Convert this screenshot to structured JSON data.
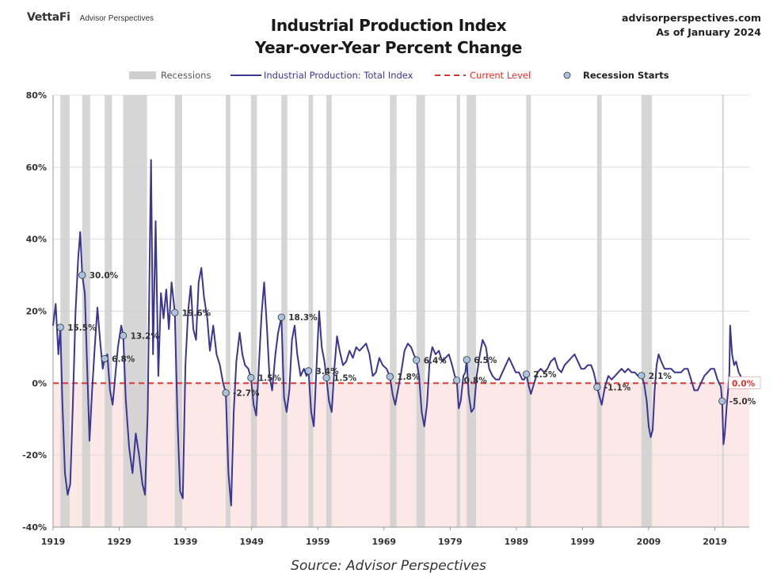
{
  "header": {
    "brand_primary": "VettaFi",
    "brand_secondary": "Advisor Perspectives",
    "title_line1": "Industrial Production Index",
    "title_line2": "Year-over-Year Percent Change",
    "site": "advisorperspectives.com",
    "as_of": "As of January 2024"
  },
  "source": "Source: Advisor Perspectives",
  "colors": {
    "series": "#3b3594",
    "recession": "#cfcfcf",
    "current_level": "#e8302a",
    "negative_fill": "#fde8e8",
    "marker_fill": "#a9c3e0",
    "gridline": "#dcdcdc"
  },
  "chart_data": {
    "type": "line",
    "title": "Industrial Production Index Year-over-Year Percent Change",
    "xlabel": "",
    "ylabel": "",
    "xlim": [
      1919,
      2024.2
    ],
    "ylim": [
      -40,
      80
    ],
    "x_ticks": [
      1919,
      1929,
      1939,
      1949,
      1959,
      1969,
      1979,
      1989,
      1999,
      2009,
      2019
    ],
    "y_ticks": [
      -40,
      -20,
      0,
      20,
      40,
      60,
      80
    ],
    "y_tick_labels": [
      "-40%",
      "-20%",
      "0%",
      "20%",
      "40%",
      "60%",
      "80%"
    ],
    "grid": "horizontal",
    "legend_position": "top",
    "legend": [
      {
        "key": "recessions",
        "label": "Recessions"
      },
      {
        "key": "series",
        "label": "Industrial Production: Total Index"
      },
      {
        "key": "current",
        "label": "Current Level"
      },
      {
        "key": "starts",
        "label": "Recession Starts"
      }
    ],
    "current_level": 0.0,
    "current_level_label": "0.0%",
    "recessions": [
      [
        1920.1,
        1921.5
      ],
      [
        1923.4,
        1924.6
      ],
      [
        1926.8,
        1927.9
      ],
      [
        1929.6,
        1933.2
      ],
      [
        1937.4,
        1938.5
      ],
      [
        1945.1,
        1945.8
      ],
      [
        1948.9,
        1949.8
      ],
      [
        1953.5,
        1954.4
      ],
      [
        1957.6,
        1958.3
      ],
      [
        1960.3,
        1961.1
      ],
      [
        1969.9,
        1970.9
      ],
      [
        1973.9,
        1975.2
      ],
      [
        1980.0,
        1980.5
      ],
      [
        1981.5,
        1982.9
      ],
      [
        1990.5,
        1991.2
      ],
      [
        2001.2,
        2001.9
      ],
      [
        2007.9,
        2009.5
      ],
      [
        2020.1,
        2020.3
      ]
    ],
    "recession_starts": [
      {
        "x": 1920.1,
        "y": 15.5,
        "label": "15.5%"
      },
      {
        "x": 1923.4,
        "y": 30.0,
        "label": "30.0%"
      },
      {
        "x": 1926.8,
        "y": 6.8,
        "label": "6.8%"
      },
      {
        "x": 1929.6,
        "y": 13.2,
        "label": "13.2%"
      },
      {
        "x": 1937.4,
        "y": 19.6,
        "label": "19.6%"
      },
      {
        "x": 1945.1,
        "y": -2.7,
        "label": "-2.7%"
      },
      {
        "x": 1948.9,
        "y": 1.5,
        "label": "1.5%"
      },
      {
        "x": 1953.5,
        "y": 18.3,
        "label": "18.3%"
      },
      {
        "x": 1957.6,
        "y": 3.4,
        "label": "3.4%"
      },
      {
        "x": 1960.3,
        "y": 1.5,
        "label": "1.5%"
      },
      {
        "x": 1969.9,
        "y": 1.8,
        "label": "1.8%"
      },
      {
        "x": 1973.9,
        "y": 6.4,
        "label": "6.4%"
      },
      {
        "x": 1980.0,
        "y": 0.8,
        "label": "0.8%"
      },
      {
        "x": 1981.5,
        "y": 6.5,
        "label": "6.5%"
      },
      {
        "x": 1990.5,
        "y": 2.5,
        "label": "2.5%"
      },
      {
        "x": 2001.2,
        "y": -1.1,
        "label": "-1.1%"
      },
      {
        "x": 2007.9,
        "y": 2.1,
        "label": "2.1%"
      },
      {
        "x": 2020.1,
        "y": -5.0,
        "label": "-5.0%"
      }
    ],
    "series": [
      {
        "name": "Industrial Production: Total Index",
        "points": [
          [
            1919.0,
            16
          ],
          [
            1919.4,
            22
          ],
          [
            1919.8,
            8
          ],
          [
            1920.1,
            15.5
          ],
          [
            1920.4,
            -5
          ],
          [
            1920.8,
            -25
          ],
          [
            1921.2,
            -31
          ],
          [
            1921.6,
            -28
          ],
          [
            1922.0,
            -5
          ],
          [
            1922.4,
            20
          ],
          [
            1922.8,
            35
          ],
          [
            1923.1,
            42
          ],
          [
            1923.4,
            30
          ],
          [
            1923.8,
            25
          ],
          [
            1924.2,
            2
          ],
          [
            1924.5,
            -16
          ],
          [
            1924.9,
            -2
          ],
          [
            1925.3,
            10
          ],
          [
            1925.7,
            21
          ],
          [
            1926.1,
            12
          ],
          [
            1926.5,
            4
          ],
          [
            1926.8,
            6.8
          ],
          [
            1927.2,
            8
          ],
          [
            1927.6,
            -2
          ],
          [
            1928.0,
            -6
          ],
          [
            1928.4,
            2
          ],
          [
            1928.8,
            10
          ],
          [
            1929.3,
            16
          ],
          [
            1929.6,
            13.2
          ],
          [
            1930.0,
            -5
          ],
          [
            1930.5,
            -18
          ],
          [
            1931.0,
            -25
          ],
          [
            1931.5,
            -14
          ],
          [
            1932.0,
            -20
          ],
          [
            1932.5,
            -28
          ],
          [
            1932.9,
            -31
          ],
          [
            1933.3,
            -8
          ],
          [
            1933.6,
            35
          ],
          [
            1933.8,
            62
          ],
          [
            1934.1,
            8
          ],
          [
            1934.5,
            45
          ],
          [
            1934.9,
            2
          ],
          [
            1935.3,
            25
          ],
          [
            1935.7,
            18
          ],
          [
            1936.1,
            26
          ],
          [
            1936.5,
            15
          ],
          [
            1936.9,
            28
          ],
          [
            1937.4,
            19.6
          ],
          [
            1937.8,
            -10
          ],
          [
            1938.2,
            -30
          ],
          [
            1938.6,
            -32
          ],
          [
            1939.0,
            5
          ],
          [
            1939.4,
            20
          ],
          [
            1939.8,
            27
          ],
          [
            1940.2,
            15
          ],
          [
            1940.6,
            12
          ],
          [
            1941.0,
            28
          ],
          [
            1941.4,
            32
          ],
          [
            1941.8,
            24
          ],
          [
            1942.3,
            18
          ],
          [
            1942.7,
            9
          ],
          [
            1943.2,
            16
          ],
          [
            1943.7,
            8
          ],
          [
            1944.2,
            5
          ],
          [
            1944.7,
            0
          ],
          [
            1945.1,
            -2.7
          ],
          [
            1945.5,
            -25
          ],
          [
            1945.9,
            -34
          ],
          [
            1946.3,
            -8
          ],
          [
            1946.7,
            6
          ],
          [
            1947.2,
            14
          ],
          [
            1947.6,
            8
          ],
          [
            1948.0,
            5
          ],
          [
            1948.5,
            4
          ],
          [
            1948.9,
            1.5
          ],
          [
            1949.3,
            -6
          ],
          [
            1949.7,
            -9
          ],
          [
            1950.1,
            5
          ],
          [
            1950.5,
            19
          ],
          [
            1950.9,
            28
          ],
          [
            1951.3,
            16
          ],
          [
            1951.7,
            2
          ],
          [
            1952.1,
            -2
          ],
          [
            1952.6,
            8
          ],
          [
            1953.0,
            14
          ],
          [
            1953.5,
            18.3
          ],
          [
            1953.9,
            -4
          ],
          [
            1954.3,
            -8
          ],
          [
            1954.7,
            -2
          ],
          [
            1955.1,
            12
          ],
          [
            1955.5,
            16
          ],
          [
            1955.9,
            8
          ],
          [
            1956.4,
            2
          ],
          [
            1956.9,
            4
          ],
          [
            1957.3,
            2
          ],
          [
            1957.6,
            3.4
          ],
          [
            1958.0,
            -8
          ],
          [
            1958.4,
            -12
          ],
          [
            1958.8,
            4
          ],
          [
            1959.2,
            20
          ],
          [
            1959.6,
            10
          ],
          [
            1960.0,
            6
          ],
          [
            1960.3,
            1.5
          ],
          [
            1960.7,
            -5
          ],
          [
            1961.1,
            -8
          ],
          [
            1961.5,
            4
          ],
          [
            1961.9,
            13
          ],
          [
            1962.3,
            9
          ],
          [
            1962.8,
            5
          ],
          [
            1963.3,
            6
          ],
          [
            1963.8,
            9
          ],
          [
            1964.3,
            7
          ],
          [
            1964.8,
            10
          ],
          [
            1965.3,
            9
          ],
          [
            1965.8,
            10
          ],
          [
            1966.3,
            11
          ],
          [
            1966.8,
            8
          ],
          [
            1967.3,
            2
          ],
          [
            1967.8,
            3
          ],
          [
            1968.3,
            7
          ],
          [
            1968.8,
            5
          ],
          [
            1969.4,
            4
          ],
          [
            1969.9,
            1.8
          ],
          [
            1970.3,
            -3
          ],
          [
            1970.7,
            -6
          ],
          [
            1971.1,
            -2
          ],
          [
            1971.6,
            3
          ],
          [
            1972.1,
            9
          ],
          [
            1972.6,
            11
          ],
          [
            1973.1,
            10
          ],
          [
            1973.5,
            8
          ],
          [
            1973.9,
            6.4
          ],
          [
            1974.3,
            2
          ],
          [
            1974.7,
            -8
          ],
          [
            1975.1,
            -12
          ],
          [
            1975.5,
            -6
          ],
          [
            1975.9,
            6
          ],
          [
            1976.3,
            10
          ],
          [
            1976.8,
            8
          ],
          [
            1977.3,
            9
          ],
          [
            1977.8,
            6
          ],
          [
            1978.3,
            7
          ],
          [
            1978.8,
            8
          ],
          [
            1979.3,
            5
          ],
          [
            1979.7,
            2
          ],
          [
            1980.0,
            0.8
          ],
          [
            1980.3,
            -7
          ],
          [
            1980.6,
            -5
          ],
          [
            1981.0,
            2
          ],
          [
            1981.3,
            3
          ],
          [
            1981.5,
            6.5
          ],
          [
            1981.8,
            -3
          ],
          [
            1982.2,
            -8
          ],
          [
            1982.6,
            -7
          ],
          [
            1983.0,
            2
          ],
          [
            1983.5,
            8
          ],
          [
            1983.9,
            12
          ],
          [
            1984.4,
            10
          ],
          [
            1984.9,
            4
          ],
          [
            1985.4,
            2
          ],
          [
            1985.9,
            1
          ],
          [
            1986.4,
            1
          ],
          [
            1986.9,
            3
          ],
          [
            1987.4,
            5
          ],
          [
            1987.9,
            7
          ],
          [
            1988.4,
            5
          ],
          [
            1988.9,
            3
          ],
          [
            1989.4,
            3
          ],
          [
            1989.9,
            1
          ],
          [
            1990.2,
            1
          ],
          [
            1990.5,
            2.5
          ],
          [
            1990.9,
            -1
          ],
          [
            1991.2,
            -3
          ],
          [
            1991.7,
            0
          ],
          [
            1992.2,
            3
          ],
          [
            1992.7,
            4
          ],
          [
            1993.2,
            3
          ],
          [
            1993.7,
            4
          ],
          [
            1994.2,
            6
          ],
          [
            1994.8,
            7
          ],
          [
            1995.3,
            4
          ],
          [
            1995.8,
            3
          ],
          [
            1996.3,
            5
          ],
          [
            1996.8,
            6
          ],
          [
            1997.3,
            7
          ],
          [
            1997.8,
            8
          ],
          [
            1998.3,
            6
          ],
          [
            1998.8,
            4
          ],
          [
            1999.3,
            4
          ],
          [
            1999.8,
            5
          ],
          [
            2000.3,
            5
          ],
          [
            2000.7,
            3
          ],
          [
            2001.2,
            -1.1
          ],
          [
            2001.6,
            -4
          ],
          [
            2001.9,
            -6
          ],
          [
            2002.4,
            -1
          ],
          [
            2002.9,
            2
          ],
          [
            2003.4,
            1
          ],
          [
            2003.9,
            2
          ],
          [
            2004.4,
            3
          ],
          [
            2004.9,
            4
          ],
          [
            2005.4,
            3
          ],
          [
            2005.9,
            4
          ],
          [
            2006.4,
            3
          ],
          [
            2006.9,
            3
          ],
          [
            2007.4,
            2
          ],
          [
            2007.9,
            2.1
          ],
          [
            2008.3,
            0
          ],
          [
            2008.7,
            -5
          ],
          [
            2009.0,
            -12
          ],
          [
            2009.3,
            -15
          ],
          [
            2009.6,
            -13
          ],
          [
            2009.9,
            -2
          ],
          [
            2010.2,
            5
          ],
          [
            2010.5,
            8
          ],
          [
            2010.9,
            6
          ],
          [
            2011.4,
            4
          ],
          [
            2011.9,
            4
          ],
          [
            2012.4,
            4
          ],
          [
            2012.9,
            3
          ],
          [
            2013.4,
            3
          ],
          [
            2013.9,
            3
          ],
          [
            2014.4,
            4
          ],
          [
            2014.9,
            4
          ],
          [
            2015.4,
            1
          ],
          [
            2015.9,
            -2
          ],
          [
            2016.4,
            -2
          ],
          [
            2016.9,
            0
          ],
          [
            2017.4,
            2
          ],
          [
            2017.9,
            3
          ],
          [
            2018.4,
            4
          ],
          [
            2018.9,
            4
          ],
          [
            2019.4,
            1
          ],
          [
            2019.9,
            -1
          ],
          [
            2020.1,
            -5.0
          ],
          [
            2020.3,
            -17
          ],
          [
            2020.5,
            -14
          ],
          [
            2020.8,
            -6
          ],
          [
            2021.0,
            -2
          ],
          [
            2021.2,
            3
          ],
          [
            2021.3,
            16
          ],
          [
            2021.6,
            8
          ],
          [
            2021.9,
            5
          ],
          [
            2022.2,
            6
          ],
          [
            2022.6,
            3
          ],
          [
            2022.9,
            2
          ],
          [
            2023.3,
            0
          ],
          [
            2023.6,
            -1
          ],
          [
            2023.9,
            1
          ],
          [
            2024.1,
            0
          ]
        ]
      }
    ]
  }
}
